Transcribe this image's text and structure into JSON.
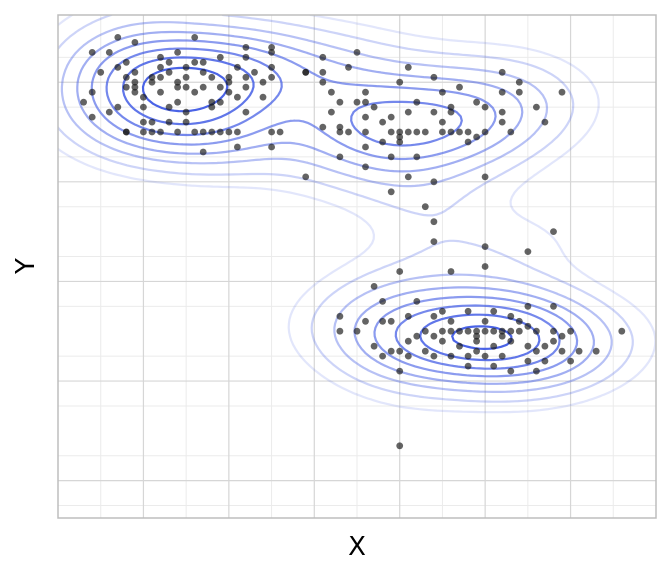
{
  "chart_data": {
    "type": "scatter",
    "title": "",
    "xlabel": "X",
    "ylabel": "Y",
    "xlim": [
      -1.0,
      6.0
    ],
    "ylim": [
      -2.75,
      7.35
    ],
    "x_gridlines": [
      0,
      1,
      2,
      3,
      4,
      5
    ],
    "y_gridlines": [
      -2,
      0,
      2,
      4,
      6
    ],
    "x_minor_gridlines": [
      -0.5,
      0.5,
      1.5,
      2.5,
      3.5,
      4.5,
      5.5
    ],
    "y_minor_gridlines": [
      -2.5,
      -1.5,
      -0.5,
      0.5,
      1.5,
      2.5,
      3.5,
      4.5,
      5.5,
      6.5
    ],
    "tick_labels_visible": false,
    "grid": true,
    "legend": "none",
    "colors": {
      "points": "#1a1a1a",
      "contour": "#4a63e6",
      "grid_major": "#d6d6d6",
      "grid_minor": "#ebebeb",
      "panel_border": "#bdbdbd"
    },
    "points": [
      [
        0.0,
        7.9
      ],
      [
        0.0,
        7.5
      ],
      [
        -0.3,
        6.9
      ],
      [
        0.6,
        6.9
      ],
      [
        -0.1,
        6.8
      ],
      [
        1.2,
        6.7
      ],
      [
        1.5,
        6.7
      ],
      [
        1.5,
        6.6
      ],
      [
        -0.6,
        6.6
      ],
      [
        -0.4,
        6.6
      ],
      [
        0.4,
        6.6
      ],
      [
        0.2,
        6.5
      ],
      [
        0.9,
        6.5
      ],
      [
        1.2,
        6.5
      ],
      [
        0.3,
        6.4
      ],
      [
        -0.2,
        6.4
      ],
      [
        0.6,
        6.4
      ],
      [
        0.7,
        6.4
      ],
      [
        0.2,
        6.3
      ],
      [
        0.5,
        6.3
      ],
      [
        1.1,
        6.3
      ],
      [
        1.5,
        6.3
      ],
      [
        -0.3,
        6.3
      ],
      [
        -0.1,
        6.2
      ],
      [
        0.3,
        6.2
      ],
      [
        1.3,
        6.2
      ],
      [
        1.5,
        6.1
      ],
      [
        1.9,
        6.2
      ],
      [
        0.7,
        6.2
      ],
      [
        -0.5,
        6.2
      ],
      [
        -0.2,
        6.1
      ],
      [
        0.1,
        6.1
      ],
      [
        0.2,
        6.1
      ],
      [
        0.5,
        6.1
      ],
      [
        0.8,
        6.1
      ],
      [
        1.0,
        6.1
      ],
      [
        1.2,
        6.1
      ],
      [
        1.4,
        6.0
      ],
      [
        1.0,
        6.0
      ],
      [
        0.4,
        6.0
      ],
      [
        0.1,
        6.0
      ],
      [
        -0.1,
        6.0
      ],
      [
        -0.2,
        5.9
      ],
      [
        0.4,
        5.9
      ],
      [
        0.5,
        5.9
      ],
      [
        0.7,
        5.9
      ],
      [
        0.9,
        5.9
      ],
      [
        1.2,
        5.9
      ],
      [
        -0.1,
        5.9
      ],
      [
        -0.6,
        5.8
      ],
      [
        -0.1,
        5.8
      ],
      [
        0.2,
        5.8
      ],
      [
        0.6,
        5.8
      ],
      [
        1.1,
        5.7
      ],
      [
        0.0,
        5.7
      ],
      [
        0.4,
        5.6
      ],
      [
        0.3,
        5.5
      ],
      [
        0.8,
        5.5
      ],
      [
        0.0,
        5.5
      ],
      [
        -0.3,
        5.5
      ],
      [
        0.5,
        5.4
      ],
      [
        0.5,
        5.2
      ],
      [
        0.1,
        5.2
      ],
      [
        0.3,
        5.2
      ],
      [
        0.0,
        5.2
      ],
      [
        0.2,
        5.0
      ],
      [
        0.4,
        5.0
      ],
      [
        0.7,
        5.0
      ],
      [
        0.8,
        5.0
      ],
      [
        0.9,
        5.0
      ],
      [
        1.0,
        5.0
      ],
      [
        1.1,
        5.0
      ],
      [
        0.6,
        5.0
      ],
      [
        -0.2,
        5.0
      ],
      [
        -0.2,
        5.0
      ],
      [
        0.0,
        5.0
      ],
      [
        0.1,
        5.0
      ],
      [
        1.5,
        5.0
      ],
      [
        1.6,
        5.0
      ],
      [
        1.5,
        4.7
      ],
      [
        0.7,
        4.6
      ],
      [
        1.1,
        4.7
      ],
      [
        -0.6,
        5.3
      ],
      [
        -0.7,
        5.6
      ],
      [
        -0.4,
        5.4
      ],
      [
        2.1,
        6.0
      ],
      [
        2.2,
        5.8
      ],
      [
        2.1,
        6.2
      ],
      [
        1.9,
        6.2
      ],
      [
        2.1,
        6.5
      ],
      [
        2.5,
        6.6
      ],
      [
        2.4,
        6.3
      ],
      [
        3.1,
        6.3
      ],
      [
        3.0,
        6.0
      ],
      [
        2.6,
        5.8
      ],
      [
        2.5,
        5.6
      ],
      [
        3.4,
        6.1
      ],
      [
        2.3,
        5.6
      ],
      [
        2.2,
        5.4
      ],
      [
        2.3,
        5.1
      ],
      [
        2.3,
        5.0
      ],
      [
        2.4,
        5.0
      ],
      [
        2.6,
        5.0
      ],
      [
        2.9,
        5.0
      ],
      [
        3.0,
        5.0
      ],
      [
        3.2,
        5.0
      ],
      [
        3.3,
        5.0
      ],
      [
        3.5,
        5.0
      ],
      [
        3.1,
        5.0
      ],
      [
        3.6,
        5.0
      ],
      [
        3.8,
        5.0
      ],
      [
        4.0,
        5.0
      ],
      [
        4.3,
        5.0
      ],
      [
        3.9,
        4.9
      ],
      [
        3.8,
        4.8
      ],
      [
        2.9,
        4.5
      ],
      [
        3.2,
        4.5
      ],
      [
        3.0,
        4.8
      ],
      [
        2.8,
        4.8
      ],
      [
        2.6,
        4.7
      ],
      [
        2.3,
        4.5
      ],
      [
        2.6,
        4.3
      ],
      [
        3.1,
        4.1
      ],
      [
        3.4,
        4.0
      ],
      [
        2.9,
        3.8
      ],
      [
        3.3,
        3.5
      ],
      [
        3.4,
        3.2
      ],
      [
        3.0,
        4.9
      ],
      [
        2.8,
        5.2
      ],
      [
        2.6,
        5.3
      ],
      [
        2.7,
        5.5
      ],
      [
        2.9,
        5.3
      ],
      [
        3.1,
        5.4
      ],
      [
        3.2,
        5.6
      ],
      [
        3.4,
        5.4
      ],
      [
        3.6,
        5.5
      ],
      [
        2.6,
        5.6
      ],
      [
        2.1,
        5.1
      ],
      [
        4.0,
        5.5
      ],
      [
        4.2,
        5.8
      ],
      [
        3.7,
        5.9
      ],
      [
        3.5,
        5.8
      ],
      [
        3.9,
        5.6
      ],
      [
        4.2,
        5.2
      ],
      [
        4.2,
        5.4
      ],
      [
        3.7,
        5.0
      ],
      [
        3.5,
        5.2
      ],
      [
        3.6,
        5.4
      ],
      [
        1.2,
        5.4
      ],
      [
        0.9,
        5.6
      ],
      [
        1.4,
        5.7
      ],
      [
        1.0,
        5.8
      ],
      [
        0.8,
        5.6
      ],
      [
        1.9,
        4.1
      ],
      [
        4.0,
        4.1
      ],
      [
        4.4,
        5.8
      ],
      [
        4.6,
        5.5
      ],
      [
        4.2,
        6.2
      ],
      [
        4.4,
        6.0
      ],
      [
        4.7,
        5.2
      ],
      [
        4.9,
        5.8
      ],
      [
        4.8,
        3.0
      ],
      [
        4.5,
        2.6
      ],
      [
        4.0,
        2.7
      ],
      [
        4.0,
        2.3
      ],
      [
        3.4,
        2.8
      ],
      [
        3.6,
        2.2
      ],
      [
        3.0,
        2.2
      ],
      [
        2.7,
        1.9
      ],
      [
        2.8,
        1.6
      ],
      [
        3.2,
        1.6
      ],
      [
        3.5,
        1.4
      ],
      [
        3.8,
        1.4
      ],
      [
        4.1,
        1.4
      ],
      [
        4.3,
        1.3
      ],
      [
        4.5,
        1.5
      ],
      [
        4.8,
        1.5
      ],
      [
        4.5,
        1.1
      ],
      [
        2.3,
        1.3
      ],
      [
        2.3,
        1.0
      ],
      [
        2.5,
        1.0
      ],
      [
        3.3,
        1.0
      ],
      [
        3.4,
        0.9
      ],
      [
        3.5,
        1.0
      ],
      [
        3.6,
        1.0
      ],
      [
        3.7,
        1.0
      ],
      [
        3.8,
        1.0
      ],
      [
        3.9,
        1.0
      ],
      [
        4.0,
        1.0
      ],
      [
        4.1,
        1.0
      ],
      [
        4.2,
        1.0
      ],
      [
        4.3,
        1.0
      ],
      [
        4.4,
        1.0
      ],
      [
        4.6,
        1.0
      ],
      [
        4.8,
        1.0
      ],
      [
        5.0,
        1.0
      ],
      [
        5.1,
        0.6
      ],
      [
        5.3,
        0.6
      ],
      [
        4.9,
        0.6
      ],
      [
        5.0,
        0.4
      ],
      [
        4.7,
        0.4
      ],
      [
        4.5,
        0.4
      ],
      [
        4.3,
        0.2
      ],
      [
        4.2,
        0.5
      ],
      [
        4.0,
        0.5
      ],
      [
        3.8,
        0.5
      ],
      [
        3.6,
        0.5
      ],
      [
        3.4,
        0.5
      ],
      [
        3.1,
        0.5
      ],
      [
        3.0,
        0.2
      ],
      [
        2.9,
        0.6
      ],
      [
        2.8,
        0.5
      ],
      [
        2.7,
        0.7
      ],
      [
        2.8,
        1.2
      ],
      [
        2.6,
        1.2
      ],
      [
        3.7,
        0.7
      ],
      [
        3.9,
        0.8
      ],
      [
        4.1,
        0.7
      ],
      [
        4.3,
        0.8
      ],
      [
        4.5,
        0.7
      ],
      [
        4.7,
        0.7
      ],
      [
        4.8,
        0.8
      ],
      [
        3.5,
        0.8
      ],
      [
        3.9,
        0.6
      ],
      [
        4.1,
        0.3
      ],
      [
        3.3,
        0.6
      ],
      [
        3.1,
        0.8
      ],
      [
        3.6,
        1.2
      ],
      [
        4.0,
        1.2
      ],
      [
        4.4,
        1.2
      ],
      [
        3.4,
        1.3
      ],
      [
        3.1,
        1.3
      ],
      [
        2.9,
        1.2
      ],
      [
        3.2,
        0.9
      ],
      [
        4.2,
        0.9
      ],
      [
        3.8,
        0.3
      ],
      [
        4.6,
        0.2
      ],
      [
        4.9,
        0.9
      ],
      [
        3.0,
        -1.3
      ],
      [
        5.6,
        1.0
      ],
      [
        3.0,
        0.6
      ],
      [
        4.6,
        0.6
      ],
      [
        3.9,
        0.9
      ]
    ]
  }
}
